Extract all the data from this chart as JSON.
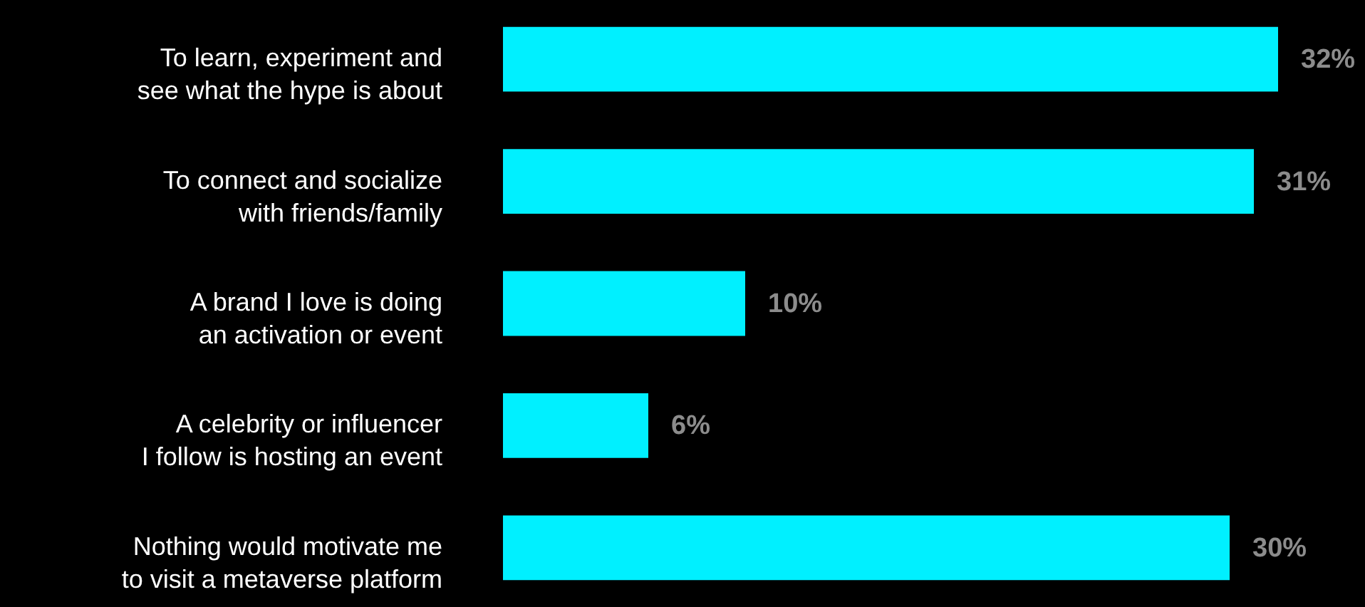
{
  "chart_data": {
    "type": "bar",
    "orientation": "horizontal",
    "categories": [
      "To learn, experiment and see what the hype is about",
      "To connect and socialize with friends/family",
      "A brand I love is doing an activation or event",
      "A celebrity or influencer I follow is hosting an event",
      "Nothing would motivate me to visit a metaverse platform"
    ],
    "values": [
      32,
      31,
      10,
      6,
      30
    ],
    "value_labels": [
      "32%",
      "31%",
      "10%",
      "6%",
      "30%"
    ],
    "color": "#00f0ff"
  }
}
